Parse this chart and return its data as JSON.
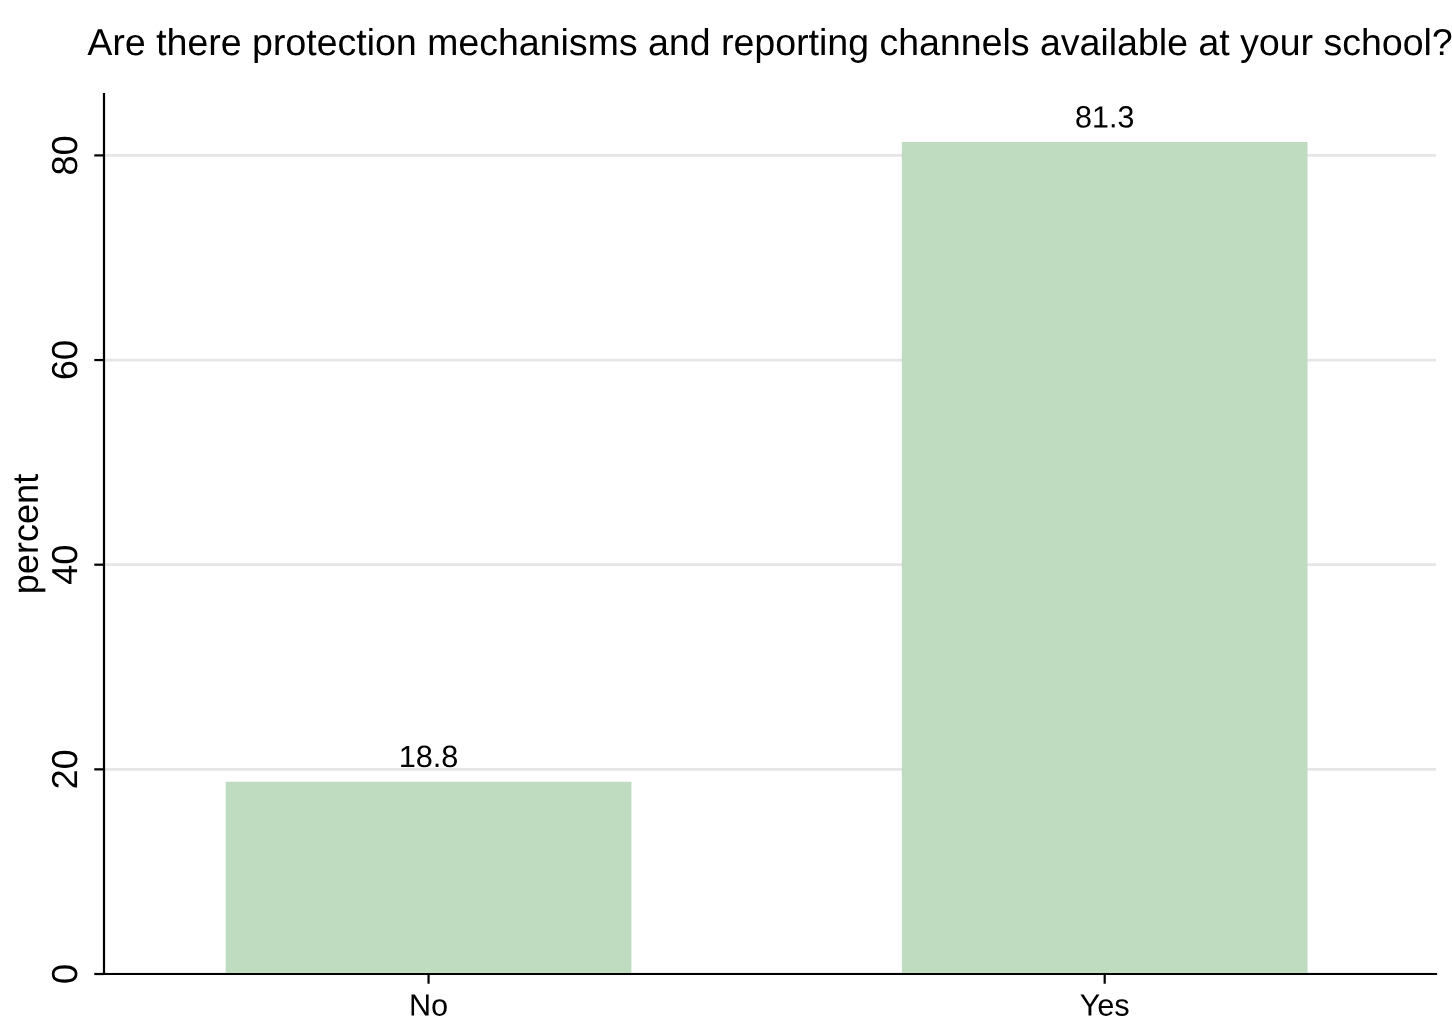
{
  "chart_data": {
    "type": "bar",
    "title": "Are there protection mechanisms and reporting channels available at your school?",
    "ylabel": "percent",
    "categories": [
      "No",
      "Yes"
    ],
    "values": [
      18.8,
      81.3
    ],
    "color": "#bfdcc0",
    "ylim": [
      0,
      86
    ],
    "yticks": [
      0,
      20,
      40,
      60,
      80
    ],
    "grid": "y",
    "data_labels": true,
    "legend": false
  }
}
